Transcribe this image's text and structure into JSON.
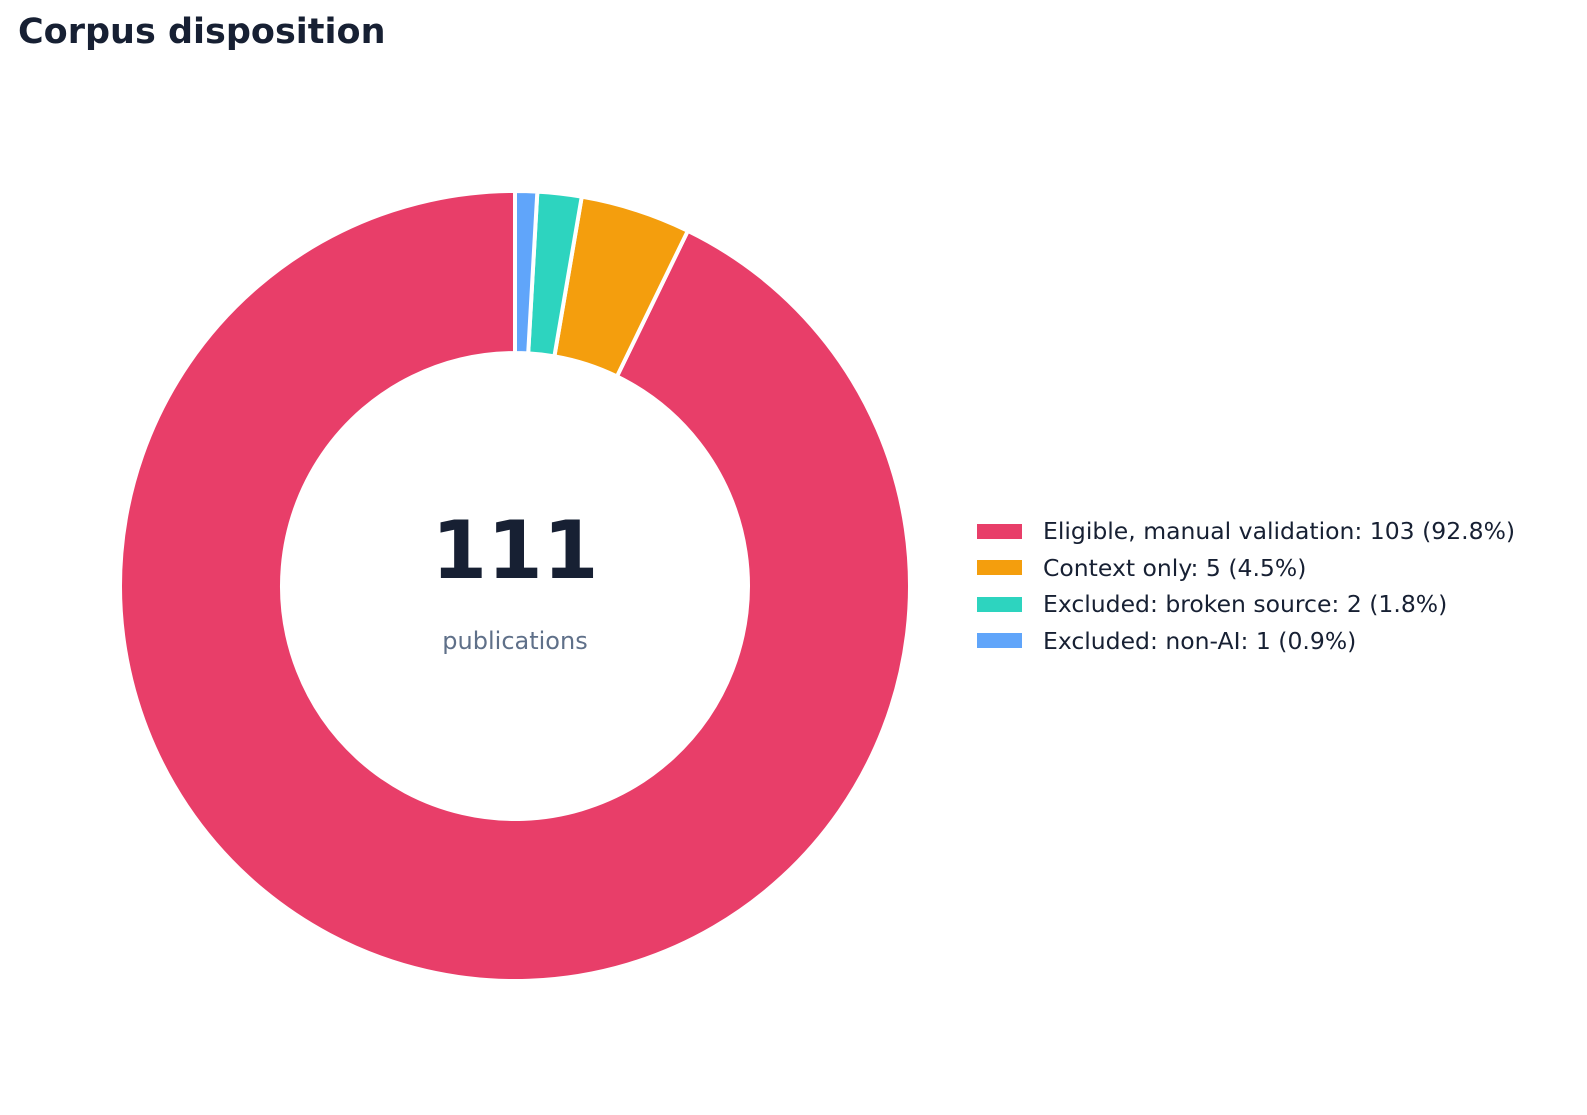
{
  "title": "Corpus disposition",
  "chart_data": {
    "type": "pie",
    "variant": "donut",
    "title": "Corpus disposition",
    "center": {
      "total": "111",
      "caption": "publications"
    },
    "start_angle_deg": 90,
    "direction": "counterclockwise",
    "legend_position": "right",
    "slices": [
      {
        "label": "Eligible, manual validation",
        "value": 103,
        "percent": 92.8,
        "color": "#e83e69",
        "legend_text": "Eligible, manual validation: 103 (92.8%)"
      },
      {
        "label": "Context only",
        "value": 5,
        "percent": 4.5,
        "color": "#f49e0d",
        "legend_text": "Context only: 5 (4.5%)"
      },
      {
        "label": "Excluded: broken source",
        "value": 2,
        "percent": 1.8,
        "color": "#2dd4bf",
        "legend_text": "Excluded: broken source: 2 (1.8%)"
      },
      {
        "label": "Excluded: non-AI",
        "value": 1,
        "percent": 0.9,
        "color": "#60a5fa",
        "legend_text": "Excluded: non-AI: 1 (0.9%)"
      }
    ]
  }
}
